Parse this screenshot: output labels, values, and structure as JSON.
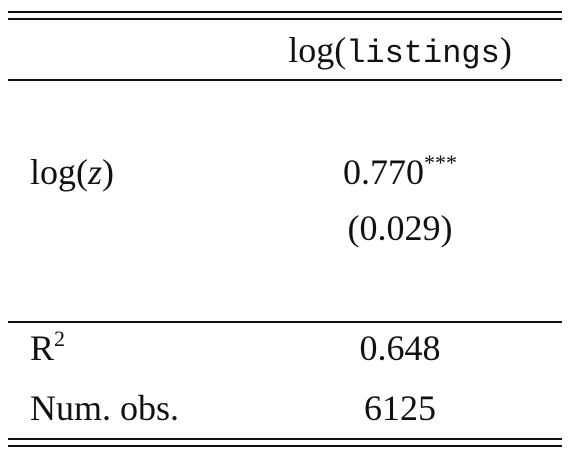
{
  "table": {
    "header": {
      "column": {
        "func": "log(",
        "var": "listings",
        "close": ")"
      }
    },
    "rows": [
      {
        "label": {
          "func": "log(",
          "var": "z",
          "close": ")"
        },
        "estimate": "0.770",
        "stars": "***",
        "se": "(0.029)"
      }
    ],
    "stats": [
      {
        "label": {
          "base": "R",
          "sup": "2"
        },
        "value": "0.648"
      },
      {
        "label": "Num. obs.",
        "value": "6125"
      }
    ]
  }
}
